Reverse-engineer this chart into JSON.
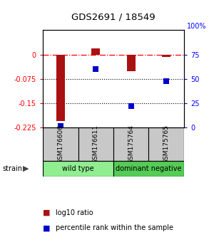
{
  "title": "GDS2691 / 18549",
  "samples": [
    "GSM176606",
    "GSM176611",
    "GSM175764",
    "GSM175765"
  ],
  "log10_ratio": [
    -0.205,
    0.018,
    -0.05,
    -0.008
  ],
  "percentile_rank": [
    2.0,
    60.0,
    22.0,
    48.0
  ],
  "groups": [
    {
      "label": "wild type",
      "samples": [
        0,
        1
      ],
      "color": "#90ee90"
    },
    {
      "label": "dominant negative",
      "samples": [
        2,
        3
      ],
      "color": "#55cc55"
    }
  ],
  "ylim_left": [
    -0.225,
    0.075
  ],
  "ylim_right": [
    0,
    100
  ],
  "yticks_left": [
    0,
    -0.075,
    -0.15,
    -0.225
  ],
  "yticks_right": [
    75,
    50,
    25,
    0
  ],
  "ytick_labels_left": [
    "0",
    "-0.075",
    "-0.15",
    "-0.225"
  ],
  "ytick_labels_right": [
    "75",
    "50",
    "25",
    "0"
  ],
  "ytop_left": "0.075",
  "ytop_right": "100%",
  "bar_color": "#aa1111",
  "point_color": "#0000cc",
  "bar_width": 0.25,
  "strain_label": "strain",
  "legend_items": [
    {
      "label": "log10 ratio",
      "color": "#aa1111"
    },
    {
      "label": "percentile rank within the sample",
      "color": "#0000cc"
    }
  ]
}
